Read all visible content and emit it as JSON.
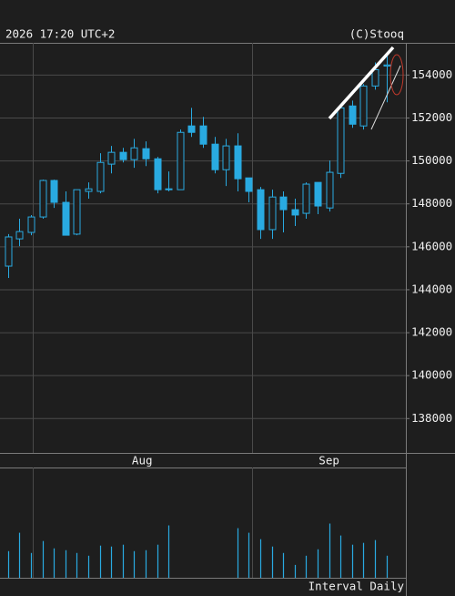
{
  "chart_data": {
    "type": "candlestick",
    "header_left": "2026 17:20 UTC+2",
    "header_right": "(C)Stooq",
    "footer": "Interval Daily",
    "color": "#29aae1",
    "ylim": [
      136400,
      155500
    ],
    "yticks": [
      138000,
      140000,
      142000,
      144000,
      146000,
      148000,
      150000,
      152000,
      154000
    ],
    "xlim": [
      -0.7,
      34.7
    ],
    "xticks": [
      {
        "value": 11.7,
        "label": "Aug"
      },
      {
        "value": 28,
        "label": "Sep"
      }
    ],
    "grid": true,
    "y2lim": [
      0,
      120
    ],
    "open": [
      145100,
      146370,
      146670,
      147390,
      149090,
      148070,
      146590,
      148580,
      148580,
      149850,
      150400,
      150060,
      150570,
      150100,
      148700,
      148660,
      151630,
      151630,
      150780,
      149590,
      150700,
      149210,
      148660,
      146800,
      148320,
      147730,
      147560,
      149000,
      147810,
      149420,
      152560,
      151630,
      153490,
      154420
    ],
    "high": [
      146590,
      147310,
      147480,
      149130,
      149130,
      148580,
      148660,
      149000,
      150360,
      150700,
      150610,
      151030,
      150910,
      150190,
      149510,
      151460,
      152470,
      152050,
      151120,
      151030,
      151290,
      149210,
      148790,
      148660,
      148580,
      148240,
      149000,
      149000,
      150020,
      152470,
      152810,
      153580,
      154590,
      154930
    ],
    "low": [
      144550,
      146030,
      146540,
      147310,
      147810,
      146540,
      146540,
      148240,
      148490,
      149420,
      149930,
      149680,
      149760,
      148490,
      148580,
      148660,
      151120,
      150610,
      149420,
      148830,
      148580,
      148070,
      146370,
      146370,
      146670,
      146970,
      147310,
      147520,
      147640,
      149210,
      151540,
      151460,
      153320,
      152730
    ],
    "close": [
      146460,
      146710,
      147390,
      149090,
      148070,
      146540,
      148660,
      148700,
      149930,
      150400,
      150060,
      150610,
      150100,
      148660,
      148660,
      151330,
      151330,
      150780,
      149590,
      150700,
      149170,
      148580,
      146800,
      148320,
      147730,
      147480,
      148920,
      147900,
      149470,
      152470,
      151710,
      153490,
      154250,
      154470
    ],
    "volume": [
      29,
      49,
      27,
      40,
      32,
      30,
      27,
      24,
      35,
      34,
      36,
      29,
      30,
      36,
      57,
      null,
      null,
      null,
      null,
      null,
      54,
      49,
      42,
      34,
      27,
      14,
      24,
      31,
      59,
      46,
      36,
      38,
      41,
      24
    ]
  }
}
